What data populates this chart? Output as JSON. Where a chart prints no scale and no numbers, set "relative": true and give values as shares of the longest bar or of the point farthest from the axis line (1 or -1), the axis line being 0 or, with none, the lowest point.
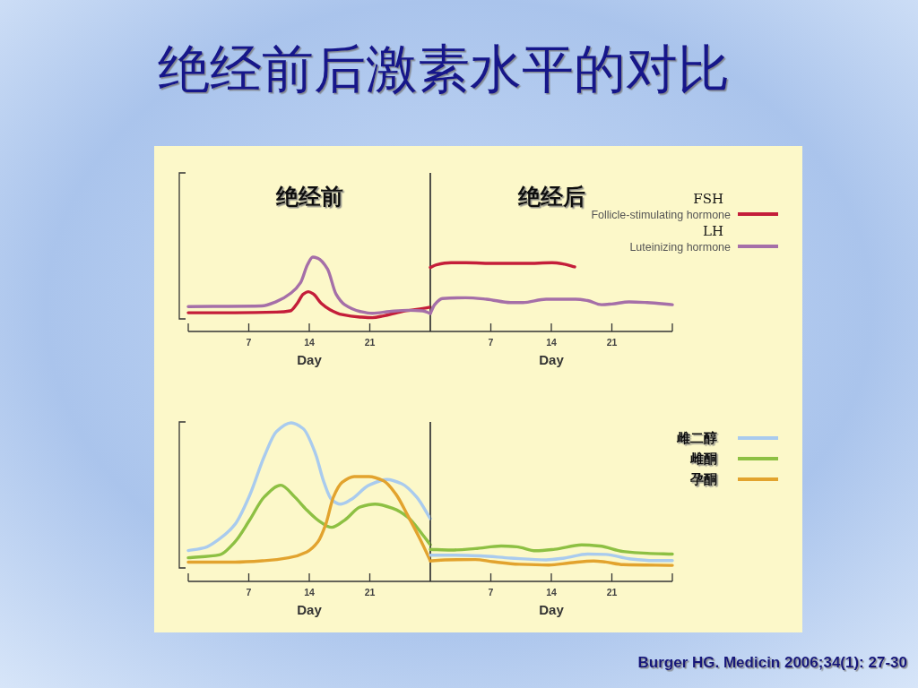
{
  "chart_data": [
    {
      "type": "line",
      "title": "绝经前后激素水平的对比",
      "xlabel": "Day",
      "relative": true,
      "tick_labels": "x",
      "xlim": [
        0,
        28
      ],
      "xticks": [
        7,
        14,
        21
      ],
      "annotations": [
        "绝经前"
      ],
      "series": [
        {
          "color": "#c41e3a",
          "x": [
            0,
            5.4,
            10.2,
            11.8,
            12.6,
            13.3,
            13.9,
            14.5,
            15.4,
            16.4,
            17.8,
            19.9,
            21.3,
            22.6,
            24.7,
            26.8,
            28
          ],
          "values": [
            0.1,
            0.1,
            0.11,
            0.13,
            0.25,
            0.4,
            0.44,
            0.4,
            0.25,
            0.15,
            0.07,
            0.03,
            0.02,
            0.05,
            0.12,
            0.16,
            0.19
          ]
        },
        {
          "color": "#a56fa8",
          "x": [
            0,
            8.5,
            10.2,
            11.9,
            13,
            13.8,
            14.4,
            15,
            16.1,
            17.1,
            18.1,
            19.9,
            21.3,
            23.3,
            25.4,
            27.1,
            28
          ],
          "values": [
            0.2,
            0.21,
            0.28,
            0.42,
            0.59,
            0.88,
            1,
            0.98,
            0.81,
            0.4,
            0.23,
            0.12,
            0.09,
            0.12,
            0.14,
            0.13,
            0.09
          ]
        }
      ]
    },
    {
      "type": "line",
      "xlabel": "Day",
      "relative": true,
      "tick_labels": "x",
      "legend": "top right",
      "xlim": [
        0,
        28
      ],
      "xticks": [
        7,
        14,
        21
      ],
      "annotations": [
        "绝经后",
        "FSH",
        "LH"
      ],
      "series": [
        {
          "name": "Follicle-stimulating hormone",
          "color": "#c41e3a",
          "x": [
            0,
            0.7,
            2.4,
            4.1,
            7.6,
            11,
            14.1,
            15.5,
            16.7
          ],
          "values": [
            0.93,
            0.97,
            1,
            1,
            0.99,
            0.99,
            1,
            0.98,
            0.94
          ]
        },
        {
          "name": "Luteinizing hormone",
          "color": "#a56fa8",
          "x": [
            0,
            0.5,
            1.4,
            4.1,
            6.5,
            9.3,
            10.7,
            13.4,
            16.8,
            18.2,
            19.8,
            21,
            23,
            25.1,
            28
          ],
          "values": [
            0.26,
            0.39,
            0.48,
            0.49,
            0.47,
            0.42,
            0.42,
            0.47,
            0.47,
            0.45,
            0.39,
            0.4,
            0.43,
            0.42,
            0.39
          ]
        }
      ]
    },
    {
      "type": "line",
      "xlabel": "Day",
      "relative": true,
      "tick_labels": "x",
      "xlim": [
        0,
        28
      ],
      "xticks": [
        7,
        14,
        21
      ],
      "series": [
        {
          "color": "#a9cbee",
          "x": [
            0,
            1.9,
            3.6,
            5.4,
            7.1,
            8.8,
            10.2,
            11.9,
            13.3,
            14.7,
            15.7,
            16.6,
            17.6,
            18.8,
            20.9,
            23,
            24.7,
            26.4,
            28
          ],
          "values": [
            0.12,
            0.14,
            0.2,
            0.3,
            0.5,
            0.77,
            0.94,
            1,
            0.96,
            0.79,
            0.59,
            0.47,
            0.44,
            0.47,
            0.57,
            0.61,
            0.58,
            0.49,
            0.34
          ]
        },
        {
          "color": "#8dc043",
          "x": [
            0,
            3.6,
            5.4,
            7.1,
            8.8,
            10.7,
            12.3,
            13.7,
            15,
            16.6,
            18.1,
            19.9,
            21.6,
            23.7,
            25.4,
            27.1,
            28
          ],
          "values": [
            0.07,
            0.09,
            0.18,
            0.33,
            0.49,
            0.57,
            0.49,
            0.4,
            0.33,
            0.28,
            0.33,
            0.42,
            0.44,
            0.41,
            0.35,
            0.23,
            0.16
          ]
        },
        {
          "color": "#e2a32e",
          "x": [
            0,
            5.4,
            8.8,
            11.6,
            13.7,
            15,
            15.9,
            16.8,
            17.8,
            19.2,
            20.9,
            22.6,
            24,
            25.4,
            26.8,
            28
          ],
          "values": [
            0.04,
            0.04,
            0.05,
            0.07,
            0.11,
            0.18,
            0.3,
            0.49,
            0.59,
            0.63,
            0.63,
            0.6,
            0.51,
            0.36,
            0.2,
            0.05
          ]
        }
      ]
    },
    {
      "type": "line",
      "xlabel": "Day",
      "relative": true,
      "tick_labels": "x",
      "legend": "top right",
      "xlim": [
        0,
        28
      ],
      "xticks": [
        7,
        14,
        21
      ],
      "annotations": [
        "Burger HG. Medicin 2006;34(1): 27-30"
      ],
      "series": [
        {
          "name": "雌二醇",
          "color": "#a9cbee",
          "x": [
            0,
            2.4,
            5.8,
            9.3,
            13.4,
            15.5,
            18.2,
            20.3,
            23,
            25.8,
            28
          ],
          "values": [
            0.72,
            0.72,
            0.7,
            0.64,
            0.59,
            0.64,
            0.75,
            0.74,
            0.62,
            0.57,
            0.57
          ]
        },
        {
          "name": "雌酮",
          "color": "#8dc043",
          "x": [
            0,
            2.4,
            5.2,
            8.2,
            10,
            12.2,
            14.4,
            17.5,
            19.6,
            22.3,
            25.1,
            28
          ],
          "values": [
            0.88,
            0.86,
            0.9,
            0.97,
            0.95,
            0.84,
            0.88,
            1,
            0.97,
            0.82,
            0.77,
            0.75
          ]
        },
        {
          "name": "孕酮",
          "color": "#e2a32e",
          "x": [
            0,
            1.7,
            5.2,
            7.2,
            10.3,
            13.7,
            16.2,
            18.9,
            20.3,
            22.3,
            28
          ],
          "values": [
            0.56,
            0.59,
            0.6,
            0.54,
            0.47,
            0.45,
            0.51,
            0.56,
            0.53,
            0.46,
            0.44
          ]
        }
      ]
    }
  ]
}
